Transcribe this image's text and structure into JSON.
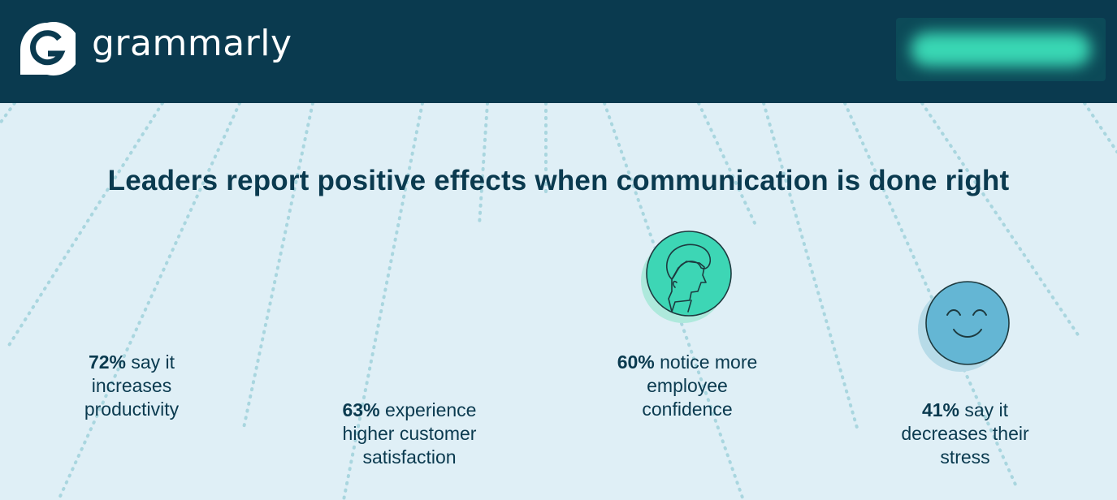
{
  "header": {
    "brand": "grammarly",
    "logo_icon": "grammarly-g-icon",
    "cta_label": "",
    "background_color": "#0a3a4f",
    "accent_color": "#39d7b4"
  },
  "headline": "Leaders report positive effects when communication is done right",
  "stats": [
    {
      "pct": "72%",
      "line1": " say it",
      "line2": "increases",
      "line3": "productivity"
    },
    {
      "pct": "63%",
      "line1": " experience",
      "line2": "higher customer",
      "line3": "satisfaction"
    },
    {
      "pct": "60%",
      "line1": " notice more",
      "line2": "employee",
      "line3": "confidence",
      "icon": "person-icon",
      "icon_color": "#3dd6b5"
    },
    {
      "pct": "41%",
      "line1": " say it",
      "line2": "decreases their",
      "line3": "stress",
      "icon": "smiley-icon",
      "icon_color": "#64b6d4"
    }
  ],
  "colors": {
    "background": "#dfeff6",
    "text": "#0a3a4f",
    "dotted_lines": "#a9d6df"
  }
}
